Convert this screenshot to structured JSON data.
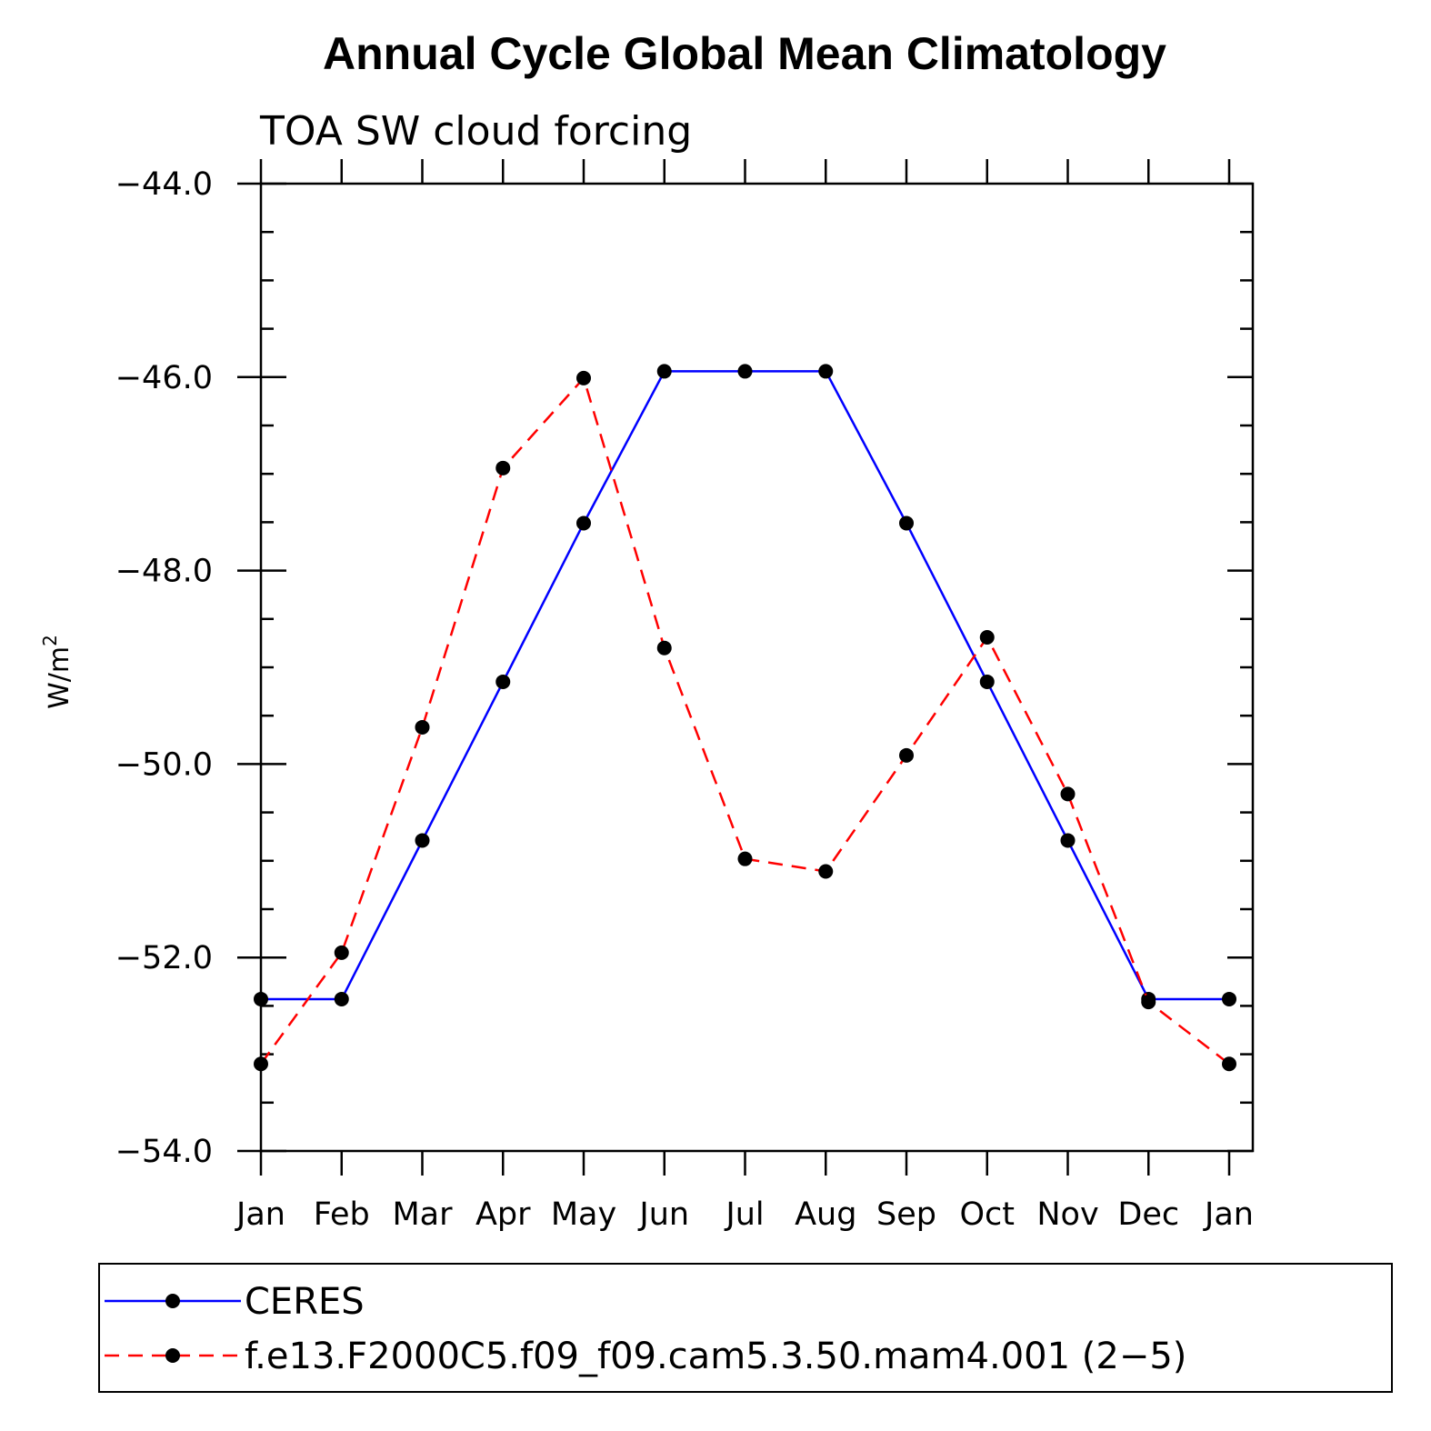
{
  "chart_data": {
    "type": "line",
    "title": "Annual Cycle Global Mean Climatology",
    "subtitle": "TOA SW cloud forcing",
    "ylabel_base": "W/m",
    "ylabel_sup": "2",
    "xlabel": "",
    "categories": [
      "Jan",
      "Feb",
      "Mar",
      "Apr",
      "May",
      "Jun",
      "Jul",
      "Aug",
      "Sep",
      "Oct",
      "Nov",
      "Dec",
      "Jan"
    ],
    "ylim": [
      -54.0,
      -44.0
    ],
    "yticks": [
      "-44.0",
      "-46.0",
      "-48.0",
      "-50.0",
      "-52.0",
      "-54.0"
    ],
    "ytick_values": [
      -44.0,
      -46.0,
      -48.0,
      -50.0,
      -52.0,
      -54.0
    ],
    "grid": false,
    "legend_placement": "bottom",
    "series": [
      {
        "name": "CERES",
        "color": "#0000ff",
        "line_style": "solid",
        "marker": "filled-circle",
        "values": [
          -52.43,
          -52.43,
          -50.79,
          -49.15,
          -47.51,
          -45.94,
          -45.94,
          -45.94,
          -47.51,
          -49.15,
          -50.79,
          -52.43,
          -52.43
        ]
      },
      {
        "name": "f.e13.F2000C5.f09_f09.cam5.3.50.mam4.001 (2−5)",
        "color": "#ff0000",
        "line_style": "dashed",
        "marker": "filled-circle",
        "values": [
          -53.1,
          -51.95,
          -49.62,
          -46.94,
          -46.01,
          -48.8,
          -50.98,
          -51.11,
          -49.91,
          -48.69,
          -50.31,
          -52.46,
          -53.1
        ]
      }
    ]
  }
}
